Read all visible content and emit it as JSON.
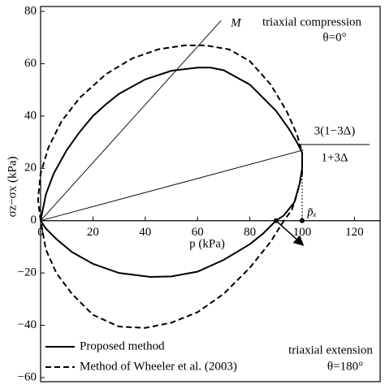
{
  "chart_data": {
    "type": "line",
    "x_label": "p (kPa)",
    "y_label": "σz−σx (kPa)",
    "xlim": [
      0,
      130
    ],
    "ylim": [
      -60,
      80
    ],
    "xticks": [
      0,
      20,
      40,
      60,
      80,
      100,
      120
    ],
    "yticks": [
      {
        "value": -60,
        "label": "−60"
      },
      {
        "value": -40,
        "label": "−40"
      },
      {
        "value": -20,
        "label": "−20"
      },
      0,
      20,
      40,
      60,
      80
    ],
    "legend": "lower left",
    "series": [
      {
        "name": "Proposed method",
        "color": "#000000",
        "dash": "solid",
        "x": [
          0,
          2,
          5,
          10,
          15,
          20,
          25,
          30,
          40,
          50,
          60,
          65,
          70,
          80,
          90,
          95,
          98,
          100,
          100,
          99,
          97,
          93,
          90,
          85,
          80,
          70,
          60,
          50,
          42,
          30,
          20,
          12,
          6,
          2,
          0
        ],
        "values": [
          0,
          10,
          18,
          27,
          34,
          40,
          44.5,
          48.5,
          54,
          57.3,
          58.5,
          58.5,
          57.5,
          52,
          42,
          35,
          30,
          26,
          20,
          14,
          7,
          2,
          0,
          -5,
          -9,
          -15,
          -19.5,
          -21.3,
          -21.5,
          -20,
          -16.5,
          -12,
          -7,
          -3,
          0
        ]
      },
      {
        "name": "Method of Wheeler et al. (2003)",
        "color": "#000000",
        "dash": "dashed",
        "x": [
          0,
          -1,
          0,
          3,
          8,
          15,
          25,
          35,
          45,
          55,
          63,
          72,
          80,
          88,
          94,
          98,
          100,
          100,
          98,
          96,
          93,
          88,
          80,
          70,
          60,
          50,
          40,
          30,
          20,
          12,
          6,
          2,
          0
        ],
        "values": [
          0,
          8,
          18,
          28,
          38,
          47,
          56,
          62,
          65.5,
          67,
          67,
          65.5,
          61,
          52,
          42,
          33,
          26,
          18,
          10,
          4,
          0,
          -8,
          -18,
          -28,
          -35,
          -39,
          -41,
          -40.5,
          -36,
          -28,
          -20,
          -11,
          0
        ]
      }
    ],
    "guide_lines": [
      {
        "label": "M",
        "x": [
          0,
          69
        ],
        "values": [
          0,
          76.5
        ]
      },
      {
        "x": [
          0,
          100.5
        ],
        "values": [
          0,
          27
        ]
      }
    ],
    "dotted_line": {
      "x": [
        100,
        100
      ],
      "values": [
        26,
        0
      ]
    },
    "points": {
      "x": [
        90,
        100
      ],
      "values": [
        0,
        0
      ]
    },
    "arrow": {
      "x": [
        90,
        100
      ],
      "values": [
        0,
        -9
      ]
    },
    "annotations": {
      "compression": "triaxial compression",
      "theta_c": "θ=0°",
      "numerator": "3(1−3Δ)",
      "denominator": "1+3Δ",
      "p_x": "p̃ₓ",
      "extension": "triaxial extension",
      "theta_e": "θ=180°"
    }
  }
}
